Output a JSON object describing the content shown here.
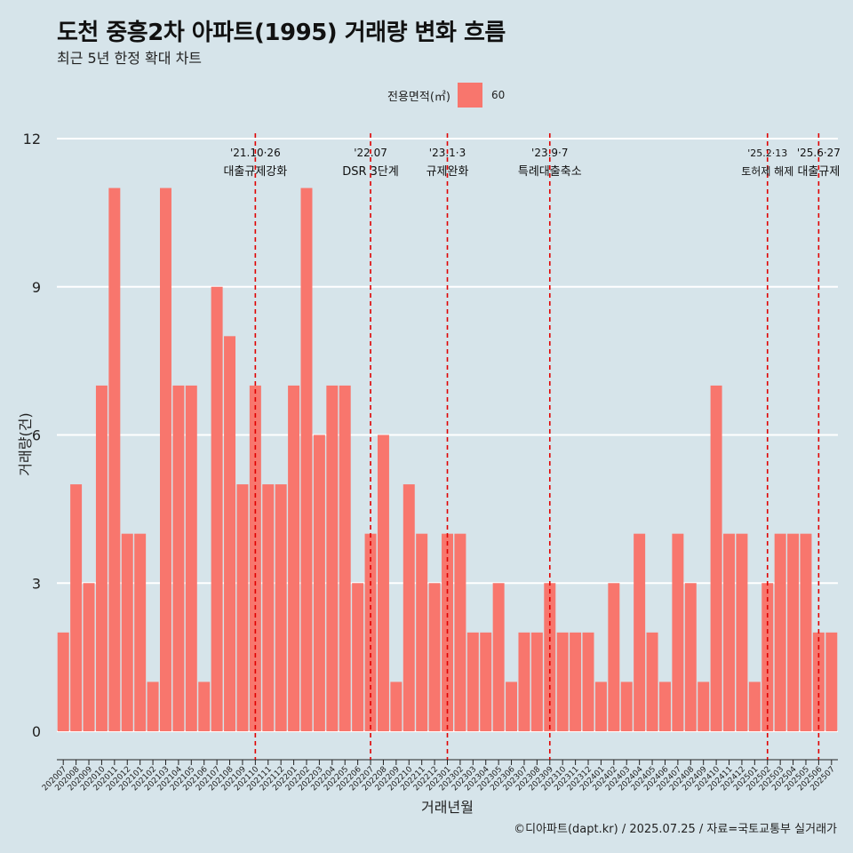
{
  "title": "도천 중흥2차 아파트(1995) 거래량 변화 흐름",
  "subtitle": "최근 5년 한정 확대 차트",
  "legend": {
    "title": "전용면적(㎡)",
    "label": "60",
    "color": "#f8766d"
  },
  "caption": "©디아파트(dapt.kr) / 2025.07.25 / 자료=국토교통부 실거래가",
  "chart_data": {
    "type": "bar",
    "title": "도천 중흥2차 아파트(1995) 거래량 변화 흐름",
    "subtitle": "최근 5년 한정 확대 차트",
    "xlabel": "거래년월",
    "ylabel": "거래량(건)",
    "ylim": [
      0,
      12
    ],
    "yticks": [
      0,
      3,
      6,
      9,
      12
    ],
    "bar_color": "#f8766d",
    "categories": [
      "202007",
      "202008",
      "202009",
      "202010",
      "202011",
      "202012",
      "202101",
      "202102",
      "202103",
      "202104",
      "202105",
      "202106",
      "202107",
      "202108",
      "202109",
      "202110",
      "202111",
      "202112",
      "202201",
      "202202",
      "202203",
      "202204",
      "202205",
      "202206",
      "202207",
      "202208",
      "202209",
      "202210",
      "202211",
      "202212",
      "202301",
      "202302",
      "202303",
      "202304",
      "202305",
      "202306",
      "202307",
      "202308",
      "202309",
      "202310",
      "202311",
      "202312",
      "202401",
      "202402",
      "202403",
      "202404",
      "202405",
      "202406",
      "202407",
      "202408",
      "202409",
      "202410",
      "202411",
      "202412",
      "202501",
      "202502",
      "202503",
      "202504",
      "202505",
      "202506",
      "202507"
    ],
    "values": [
      2,
      5,
      3,
      7,
      11,
      4,
      4,
      1,
      11,
      7,
      7,
      1,
      9,
      8,
      5,
      7,
      5,
      5,
      7,
      11,
      6,
      7,
      7,
      3,
      4,
      6,
      1,
      5,
      4,
      3,
      4,
      4,
      2,
      2,
      3,
      1,
      2,
      2,
      3,
      2,
      2,
      2,
      1,
      3,
      1,
      4,
      2,
      1,
      4,
      3,
      1,
      7,
      4,
      4,
      1,
      3,
      4,
      4,
      4,
      2,
      2
    ],
    "annotations": [
      {
        "category": "202110",
        "date": "'21.10·26",
        "label": "대출규제강화"
      },
      {
        "category": "202207",
        "date": "'22.07",
        "label": "DSR 3단계"
      },
      {
        "category": "202301",
        "date": "'23.1·3",
        "label": "규제완화"
      },
      {
        "category": "202309",
        "date": "'23.9·7",
        "label": "특례대출축소"
      },
      {
        "category": "202502",
        "date": "'25.2·13",
        "label": "토허제 해제"
      },
      {
        "category": "202506",
        "date": "'25.6·27",
        "label": "대출규제"
      }
    ],
    "grid": true
  }
}
